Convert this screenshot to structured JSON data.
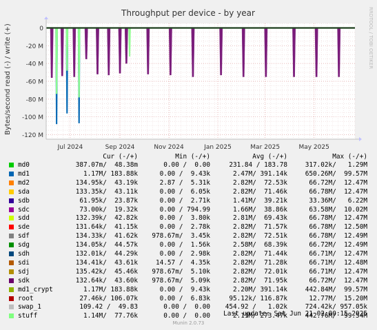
{
  "title": "Throughput per device - by year",
  "watermark": "RRDTOOL / TOBI OETIKER",
  "y_axis_label": "Bytes/second read (-) / write (+)",
  "chart_data": {
    "type": "line",
    "title": "Throughput per device - by year",
    "ylabel": "Bytes/second read (-) / write (+)",
    "ylim": [
      -125,
      5
    ],
    "yunit": "M",
    "y_ticks": [
      0,
      -20,
      -40,
      -60,
      -80,
      -100,
      -120
    ],
    "y_tick_labels": [
      "0",
      "-20 M",
      "-40 M",
      "-60 M",
      "-80 M",
      "-100 M",
      "-120 M"
    ],
    "x_tick_labels": [
      "Jul 2024",
      "Sep 2024",
      "Nov 2024",
      "Jan 2025",
      "Mar 2025",
      "May 2025"
    ],
    "x_tick_dates": [
      "2024-07-01",
      "2024-09-01",
      "2024-11-01",
      "2025-01-01",
      "2025-03-01",
      "2025-05-01"
    ],
    "x_range": [
      "2024-06-01",
      "2025-06-21"
    ],
    "grid": true,
    "series": [
      {
        "name": "md0",
        "color": "#00cc00",
        "dips": []
      },
      {
        "name": "md1",
        "color": "#0066b3",
        "dips": [
          [
            "2024-06-14",
            -108
          ],
          [
            "2024-06-27",
            -96
          ],
          [
            "2024-07-12",
            -107
          ]
        ]
      },
      {
        "name": "stuff",
        "color": "#8fff8f",
        "dips": [
          [
            "2024-06-14",
            -74
          ],
          [
            "2024-06-27",
            -48
          ],
          [
            "2024-07-12",
            -78
          ],
          [
            "2024-09-13",
            -32
          ]
        ]
      },
      {
        "name": "sdc",
        "color": "#7a1c7a",
        "dips": [
          [
            "2024-06-08",
            -56
          ],
          [
            "2024-06-21",
            -54
          ],
          [
            "2024-07-06",
            -55
          ],
          [
            "2024-07-21",
            -35
          ],
          [
            "2024-08-04",
            -52
          ],
          [
            "2024-08-18",
            -53
          ],
          [
            "2024-09-01",
            -51
          ],
          [
            "2024-09-09",
            -40
          ],
          [
            "2024-10-06",
            -52
          ],
          [
            "2024-11-03",
            -53
          ],
          [
            "2024-12-01",
            -55
          ],
          [
            "2025-01-05",
            -53
          ],
          [
            "2025-02-02",
            -55
          ],
          [
            "2025-03-02",
            -55
          ],
          [
            "2025-04-06",
            -55
          ],
          [
            "2025-05-04",
            -55
          ],
          [
            "2025-06-01",
            -55
          ]
        ]
      }
    ]
  },
  "legend_header": {
    "cur": "Cur (-/+)",
    "min": "Min (-/+)",
    "avg": "Avg (-/+)",
    "max": "Max (-/+)"
  },
  "legend": [
    {
      "name": "md0",
      "color": "#00cc00",
      "cur": "387.07m/  48.38m",
      "min": "0.00 /  0.00",
      "avg": "231.84 / 183.78",
      "max": "317.02k/   1.29M"
    },
    {
      "name": "md1",
      "color": "#0066b3",
      "cur": "1.17M/ 183.88k",
      "min": "0.00 /  9.43k",
      "avg": "2.47M/ 391.14k",
      "max": "650.26M/  99.57M"
    },
    {
      "name": "md2",
      "color": "#ff8000",
      "cur": "134.95k/  43.19k",
      "min": "2.87 /  5.31k",
      "avg": "2.82M/  72.53k",
      "max": "66.72M/  12.47M"
    },
    {
      "name": "sda",
      "color": "#ffcc00",
      "cur": "133.35k/  43.11k",
      "min": "0.00 /  6.05k",
      "avg": "2.82M/  71.46k",
      "max": "66.78M/  12.47M"
    },
    {
      "name": "sdb",
      "color": "#330099",
      "cur": "61.95k/  23.87k",
      "min": "0.00 /  2.71k",
      "avg": "1.41M/  39.21k",
      "max": "33.36M/   6.22M"
    },
    {
      "name": "sdc",
      "color": "#990099",
      "cur": "73.00k/  19.32k",
      "min": "0.00 / 794.99",
      "avg": "1.66M/  38.86k",
      "max": "63.58M/  10.02M"
    },
    {
      "name": "sdd",
      "color": "#ccff00",
      "cur": "132.39k/  42.82k",
      "min": "0.00 /  3.80k",
      "avg": "2.81M/  69.43k",
      "max": "66.78M/  12.47M"
    },
    {
      "name": "sde",
      "color": "#ff0000",
      "cur": "131.64k/  41.15k",
      "min": "0.00 /  2.78k",
      "avg": "2.82M/  71.57k",
      "max": "66.78M/  12.50M"
    },
    {
      "name": "sdf",
      "color": "#808080",
      "cur": "134.33k/  41.62k",
      "min": "978.67m/  3.45k",
      "avg": "2.82M/  72.51k",
      "max": "66.78M/  12.49M"
    },
    {
      "name": "sdg",
      "color": "#008f00",
      "cur": "134.05k/  44.57k",
      "min": "0.00 /  1.56k",
      "avg": "2.58M/  68.39k",
      "max": "66.72M/  12.49M"
    },
    {
      "name": "sdh",
      "color": "#00487d",
      "cur": "132.01k/  44.29k",
      "min": "0.00 /  2.98k",
      "avg": "2.82M/  71.44k",
      "max": "66.71M/  12.47M"
    },
    {
      "name": "sdi",
      "color": "#b35a00",
      "cur": "134.41k/  43.61k",
      "min": "14.57 /  4.35k",
      "avg": "2.82M/  71.28k",
      "max": "66.71M/  12.48M"
    },
    {
      "name": "sdj",
      "color": "#b38f00",
      "cur": "135.42k/  45.46k",
      "min": "978.67m/  5.10k",
      "avg": "2.82M/  72.01k",
      "max": "66.71M/  12.47M"
    },
    {
      "name": "sdk",
      "color": "#6b006b",
      "cur": "132.64k/  43.60k",
      "min": "978.67m/  5.09k",
      "avg": "2.82M/  71.95k",
      "max": "66.72M/  12.47M"
    },
    {
      "name": "md1_crypt",
      "color": "#8fb300",
      "cur": "1.17M/ 183.88k",
      "min": "0.00 /  9.43k",
      "avg": "2.20M/ 391.14k",
      "max": "442.84M/  99.57M"
    },
    {
      "name": "root",
      "color": "#b30000",
      "cur": "27.46k/ 106.07k",
      "min": "0.00 /  6.83k",
      "avg": "95.12k/ 116.87k",
      "max": "12.77M/  15.20M"
    },
    {
      "name": "swap_1",
      "color": "#bebebe",
      "cur": "109.42 /  49.83",
      "min": "0.00 /  0.00",
      "avg": "454.92 /   1.02k",
      "max": "724.42k/ 957.05k"
    },
    {
      "name": "stuff",
      "color": "#80ff80",
      "cur": "1.14M/  77.76k",
      "min": "0.00 /  0.00",
      "avg": "2.11M/ 273.47k",
      "max": "442.76M/  99.54M"
    }
  ],
  "last_update": "Last update: Sat Jun 21 02:00:15 2025",
  "footer": "Munin 2.0.73"
}
